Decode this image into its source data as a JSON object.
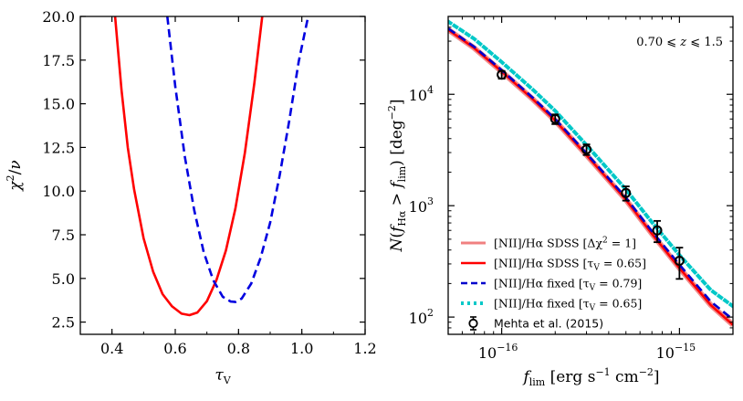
{
  "chart_data": [
    {
      "type": "line",
      "xlabel": "τ_V",
      "ylabel": "χ²/ν",
      "xlim": [
        0.3,
        1.2
      ],
      "ylim": [
        1.8,
        20.0
      ],
      "xticks": [
        0.4,
        0.6,
        0.8,
        1.0,
        1.2
      ],
      "xtick_labels": [
        "0.4",
        "0.6",
        "0.8",
        "1.0",
        "1.2"
      ],
      "yticks": [
        2.5,
        5.0,
        7.5,
        10.0,
        12.5,
        15.0,
        17.5,
        20.0
      ],
      "ytick_labels": [
        "2.5",
        "5.0",
        "7.5",
        "10.0",
        "12.5",
        "15.0",
        "17.5",
        "20.0"
      ],
      "series": [
        {
          "name": "SDSS",
          "color": "#ff0000",
          "style": "solid",
          "x": [
            0.41,
            0.43,
            0.45,
            0.47,
            0.5,
            0.53,
            0.56,
            0.59,
            0.62,
            0.645,
            0.67,
            0.7,
            0.73,
            0.76,
            0.79,
            0.82,
            0.85,
            0.875
          ],
          "y": [
            20.0,
            15.8,
            12.5,
            10.1,
            7.3,
            5.4,
            4.1,
            3.4,
            2.98,
            2.9,
            3.05,
            3.7,
            4.9,
            6.6,
            9.0,
            12.2,
            16.2,
            20.0
          ]
        },
        {
          "name": "fixed",
          "color": "#0000e0",
          "style": "dashed",
          "x": [
            0.575,
            0.6,
            0.63,
            0.66,
            0.69,
            0.72,
            0.75,
            0.775,
            0.79,
            0.81,
            0.84,
            0.87,
            0.9,
            0.93,
            0.96,
            0.99,
            1.02
          ],
          "y": [
            20.0,
            16.0,
            12.0,
            8.9,
            6.5,
            4.9,
            3.95,
            3.68,
            3.65,
            3.85,
            4.7,
            6.2,
            8.2,
            10.9,
            14.0,
            17.4,
            20.0
          ]
        }
      ]
    },
    {
      "type": "line",
      "scale": "log-log",
      "xlabel": "f_lim [erg s⁻¹ cm⁻²]",
      "ylabel": "N(f_Hα > f_lim) [deg⁻²]",
      "xlim": [
        5e-17,
        2e-15
      ],
      "ylim": [
        70,
        50000
      ],
      "xticks": [
        1e-16,
        1e-15
      ],
      "xtick_labels": [
        "10",
        "10"
      ],
      "xtick_exps": [
        "−16",
        "−15"
      ],
      "yticks": [
        100,
        1000,
        10000
      ],
      "ytick_labels": [
        "10",
        "10",
        "10"
      ],
      "ytick_exps": [
        "2",
        "3",
        "4"
      ],
      "annotation": "0.70 ⩽ z ⩽ 1.5",
      "legend_position": "lower-left",
      "legend": [
        {
          "label_pre": "[NII]/Hα SDSS [Δχ",
          "label_sup": "2",
          "label_post": " = 1]"
        },
        {
          "label_pre": "[NII]/Hα SDSS [τ",
          "label_sub": "V",
          "label_post": " = 0.65]"
        },
        {
          "label_pre": "[NII]/Hα fixed [τ",
          "label_sub": "V",
          "label_post": " = 0.79]"
        },
        {
          "label_pre": "[NII]/Hα fixed [τ",
          "label_sub": "V",
          "label_post": " = 0.65]"
        },
        {
          "label_pre": "Mehta et al. (2015)"
        }
      ],
      "x": [
        5e-17,
        7e-17,
        1e-16,
        1.5e-16,
        2e-16,
        3e-16,
        5e-16,
        7e-16,
        1e-15,
        1.5e-15,
        2e-15
      ],
      "series": [
        {
          "name": "[NII]/Hα SDSS [Δχ²=1]",
          "color": "#f08080",
          "style": "band",
          "width": 6,
          "values": [
            38000,
            26000,
            16000,
            9000,
            5800,
            2850,
            1130,
            560,
            275,
            128,
            85
          ]
        },
        {
          "name": "[NII]/Hα SDSS [τV=0.65]",
          "color": "#ff0000",
          "style": "solid",
          "values": [
            38000,
            26000,
            16000,
            9000,
            5800,
            2850,
            1130,
            560,
            275,
            128,
            85
          ]
        },
        {
          "name": "[NII]/Hα fixed [τV=0.79]",
          "color": "#0000cc",
          "style": "dashed",
          "values": [
            39000,
            26700,
            16500,
            9300,
            6000,
            2950,
            1180,
            590,
            295,
            138,
            95
          ]
        },
        {
          "name": "[NII]/Hα fixed [τV=0.65]",
          "color": "#00c8c8",
          "style": "dotted",
          "values": [
            45000,
            31500,
            19500,
            11000,
            7100,
            3500,
            1400,
            710,
            360,
            175,
            125
          ]
        }
      ],
      "points": {
        "name": "Mehta et al. (2015)",
        "x": [
          1e-16,
          2e-16,
          3e-16,
          5e-16,
          7.5e-16,
          1e-15
        ],
        "y": [
          15000,
          6000,
          3200,
          1300,
          600,
          320
        ],
        "yerr_low": [
          13800,
          5400,
          2850,
          1110,
          470,
          220
        ],
        "yerr_high": [
          16200,
          6600,
          3550,
          1490,
          730,
          420
        ]
      }
    }
  ]
}
